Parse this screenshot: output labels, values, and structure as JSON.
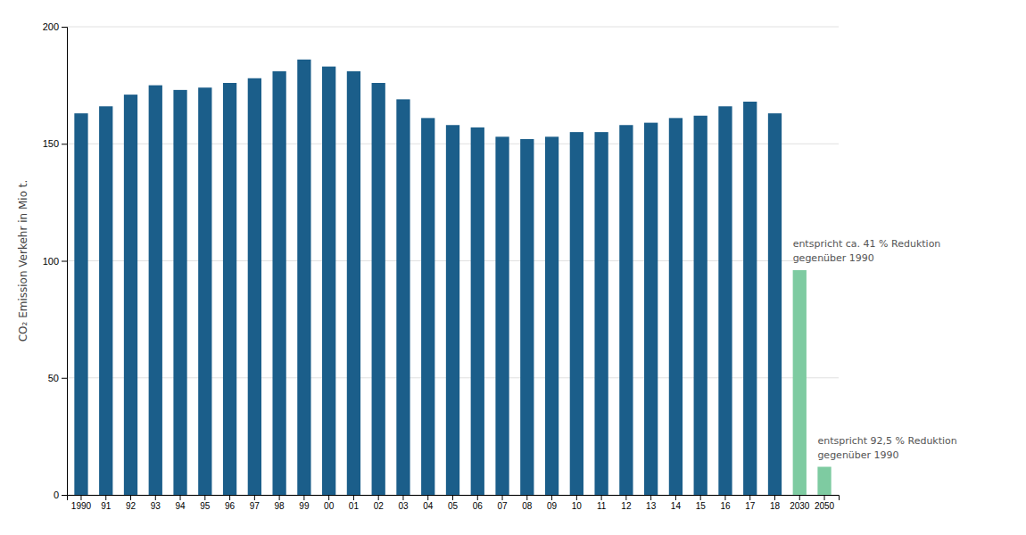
{
  "chart_data": {
    "type": "bar",
    "y_label": "CO₂ Emission  Verkehr in Mio t.",
    "categories": [
      "1990",
      "91",
      "92",
      "93",
      "94",
      "95",
      "96",
      "97",
      "98",
      "99",
      "00",
      "01",
      "02",
      "03",
      "04",
      "05",
      "06",
      "07",
      "08",
      "09",
      "10",
      "11",
      "12",
      "13",
      "14",
      "15",
      "16",
      "17",
      "18",
      "2030",
      "2050"
    ],
    "values": [
      163,
      166,
      171,
      175,
      173,
      174,
      176,
      178,
      181,
      186,
      183,
      181,
      176,
      169,
      161,
      158,
      157,
      153,
      152,
      153,
      155,
      155,
      158,
      159,
      161,
      162,
      166,
      168,
      163,
      96,
      12
    ],
    "colors": [
      "#1b5e8a",
      "#1b5e8a",
      "#1b5e8a",
      "#1b5e8a",
      "#1b5e8a",
      "#1b5e8a",
      "#1b5e8a",
      "#1b5e8a",
      "#1b5e8a",
      "#1b5e8a",
      "#1b5e8a",
      "#1b5e8a",
      "#1b5e8a",
      "#1b5e8a",
      "#1b5e8a",
      "#1b5e8a",
      "#1b5e8a",
      "#1b5e8a",
      "#1b5e8a",
      "#1b5e8a",
      "#1b5e8a",
      "#1b5e8a",
      "#1b5e8a",
      "#1b5e8a",
      "#1b5e8a",
      "#1b5e8a",
      "#1b5e8a",
      "#1b5e8a",
      "#1b5e8a",
      "#7ecba1",
      "#7ecba1"
    ],
    "ylim": [
      0,
      200
    ],
    "yticks": [
      0,
      50,
      100,
      150,
      200
    ],
    "grid": true,
    "annotations": [
      {
        "text": "entspricht ca. 41 % Reduktion\ngegenüber 1990",
        "category": "2030"
      },
      {
        "text": "entspricht 92,5 % Reduktion\ngegenüber 1990",
        "category": "2050"
      }
    ]
  }
}
